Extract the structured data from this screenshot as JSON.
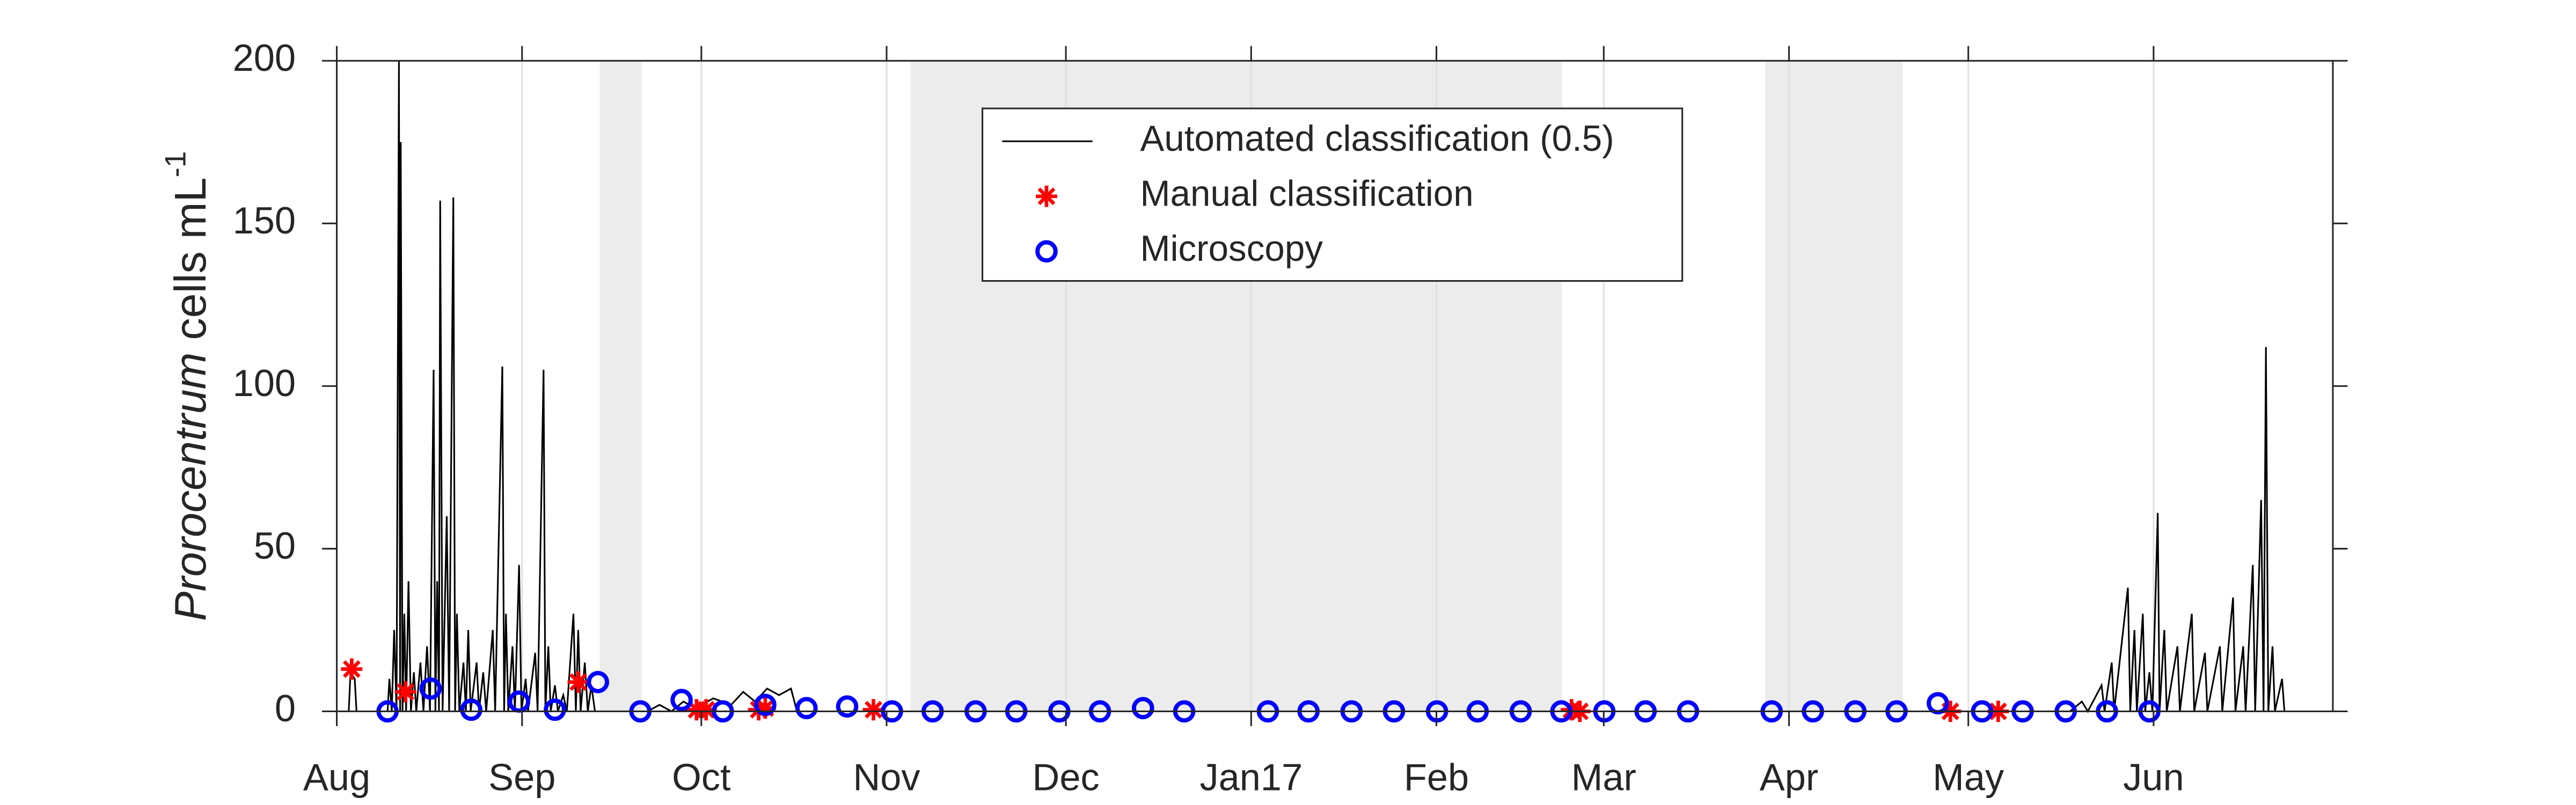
{
  "chart_data": {
    "type": "line",
    "y_label": {
      "italic": "Prorocentrum",
      "text": " cells mL",
      "superscript": "-1"
    },
    "xlim": [
      0,
      334
    ],
    "xticks": [
      {
        "value": 0,
        "label": "Aug"
      },
      {
        "value": 31,
        "label": "Sep"
      },
      {
        "value": 61,
        "label": "Oct"
      },
      {
        "value": 92,
        "label": "Nov"
      },
      {
        "value": 122,
        "label": "Dec"
      },
      {
        "value": 153,
        "label": "Jan17"
      },
      {
        "value": 184,
        "label": "Feb"
      },
      {
        "value": 212,
        "label": "Mar"
      },
      {
        "value": 243,
        "label": "Apr"
      },
      {
        "value": 273,
        "label": "May"
      },
      {
        "value": 304,
        "label": "Jun"
      }
    ],
    "ylim": [
      0,
      200
    ],
    "yticks": [
      0,
      50,
      100,
      150,
      200
    ],
    "grid": "x",
    "shaded_regions": [
      [
        44,
        51
      ],
      [
        96,
        205
      ],
      [
        239,
        262
      ]
    ],
    "shade_color": "#ececec",
    "legend": "top-center",
    "series": [
      {
        "name": "Automated classification (0.5)",
        "color": "#000000",
        "x": [
          0,
          2,
          2.3,
          3,
          3.3,
          8.5,
          8.8,
          9.2,
          9.6,
          10,
          10.4,
          10.6,
          10.7,
          11,
          11.3,
          11.6,
          12,
          12.4,
          12.9,
          13.3,
          14,
          14.5,
          15.1,
          15.6,
          16.2,
          16.5,
          16.8,
          17.1,
          17.3,
          17.7,
          18.4,
          18.8,
          19.5,
          19.8,
          20.1,
          20.5,
          21.2,
          21.6,
          22,
          22.4,
          23.4,
          23.8,
          24.5,
          25,
          26.1,
          26.5,
          27.7,
          28,
          28.3,
          28.7,
          29.4,
          29.8,
          30.5,
          30.9,
          31.6,
          32,
          33.2,
          33.6,
          34.6,
          34.9,
          35.4,
          35.8,
          36.5,
          37,
          37.9,
          38.5,
          39.6,
          40,
          40.4,
          40.8,
          41.5,
          42,
          42.6,
          43.2,
          47,
          52,
          54,
          56,
          58,
          60,
          63,
          66,
          68,
          70,
          72,
          74,
          76,
          77,
          90,
          95,
          150,
          208,
          238,
          250,
          290,
          292,
          293,
          295.3,
          295.8,
          297,
          297.4,
          299.7,
          300.1,
          300.8,
          301.2,
          302.2,
          302.6,
          303.3,
          303.8,
          304.7,
          305,
          305.8,
          306.2,
          308,
          308.4,
          310.4,
          310.8,
          312.6,
          313,
          315.1,
          315.5,
          317.3,
          317.7,
          319,
          319.4,
          320.6,
          321,
          322,
          322.4,
          322.8,
          323.2,
          323.9,
          324.3,
          325.5,
          325.9,
          326.5
        ],
        "values": [
          0,
          0,
          12,
          10,
          0,
          0,
          10,
          0,
          25,
          0,
          200,
          0,
          175,
          0,
          30,
          0,
          40,
          0,
          12,
          0,
          15,
          0,
          20,
          0,
          105,
          0,
          40,
          0,
          157,
          0,
          60,
          0,
          158,
          0,
          30,
          0,
          15,
          0,
          25,
          0,
          15,
          0,
          12,
          0,
          25,
          0,
          106,
          0,
          30,
          0,
          20,
          0,
          45,
          0,
          10,
          0,
          18,
          0,
          105,
          0,
          20,
          0,
          8,
          0,
          5,
          0,
          30,
          0,
          25,
          0,
          15,
          0,
          8,
          0,
          null,
          0,
          2,
          0,
          3,
          1,
          4,
          2,
          6,
          3,
          7,
          5,
          7,
          0,
          0,
          0,
          null,
          0,
          0,
          null,
          0,
          3,
          0,
          8,
          0,
          15,
          0,
          38,
          0,
          25,
          0,
          30,
          0,
          12,
          0,
          61,
          0,
          25,
          0,
          20,
          0,
          30,
          0,
          18,
          0,
          20,
          0,
          35,
          0,
          20,
          0,
          45,
          0,
          65,
          0,
          112,
          0,
          20,
          0,
          10,
          0,
          0
        ]
      },
      {
        "name": "Manual classification",
        "color": "#ff0000",
        "marker": "asterisk",
        "x": [
          2.5,
          11.5,
          40.4,
          60.2,
          61.8,
          70.6,
          71.7,
          89.8,
          206.6,
          208,
          270,
          278
        ],
        "values": [
          13,
          6,
          9,
          0.5,
          0.5,
          0.5,
          1,
          0.5,
          0.5,
          0,
          0,
          0
        ]
      },
      {
        "name": "Microscopy",
        "color": "#0000ff",
        "marker": "circle",
        "x": [
          8.5,
          15.7,
          22.5,
          30.5,
          36.5,
          43.7,
          50.8,
          57.7,
          64.6,
          71.7,
          78.6,
          85.4,
          92.9,
          99.7,
          106.9,
          113.7,
          120.9,
          127.7,
          134.9,
          141.8,
          155.8,
          162.6,
          169.8,
          176.9,
          184.1,
          190.9,
          198.1,
          204.9,
          212.1,
          219,
          226.1,
          240.1,
          247,
          254.1,
          261,
          267.9,
          275.3,
          282.1,
          289.3,
          296.2,
          303.3
        ],
        "values": [
          0,
          7,
          0.5,
          3,
          0.5,
          9,
          0,
          3.5,
          0,
          2,
          1,
          1.5,
          0,
          0,
          0,
          0,
          0,
          0,
          1,
          0,
          0,
          0,
          0,
          0,
          0,
          0,
          0,
          0,
          0,
          0,
          0,
          0,
          0,
          0,
          0,
          2.5,
          0,
          0,
          0,
          0,
          0
        ]
      }
    ]
  }
}
